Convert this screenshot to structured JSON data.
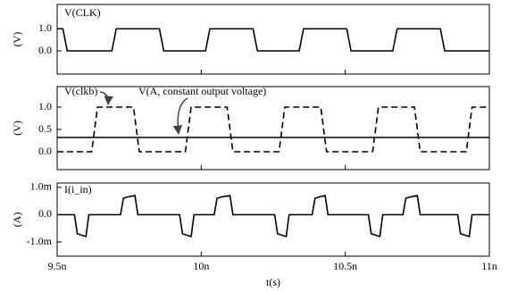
{
  "chart_data": [
    {
      "type": "line",
      "y_label": "(V)",
      "x": [
        9.5e-09,
        9.52e-09,
        9.535e-09,
        9.69e-09,
        9.705e-09,
        9.855e-09,
        9.87e-09,
        1.0015e-08,
        1.003e-08,
        1.018e-08,
        1.0195e-08,
        1.034e-08,
        1.0355e-08,
        1.0505e-08,
        1.052e-08,
        1.0665e-08,
        1.068e-08,
        1.083e-08,
        1.0845e-08,
        1.1e-08
      ],
      "series": [
        {
          "name": "V(CLK)",
          "color": "#000000",
          "line_style": "solid",
          "values": [
            1.0,
            1.0,
            0.0,
            0.0,
            1.0,
            1.0,
            0.0,
            0.0,
            1.0,
            1.0,
            0.0,
            0.0,
            1.0,
            1.0,
            0.0,
            0.0,
            1.0,
            1.0,
            0.0,
            0.0
          ]
        }
      ],
      "xlim": [
        9.5e-09,
        1.1e-08
      ],
      "ylim": [
        -1.05,
        2.1
      ],
      "yticks": [
        {
          "value": 0,
          "label": "0.0"
        },
        {
          "value": 1,
          "label": "1.0"
        }
      ]
    },
    {
      "type": "line",
      "y_label": "(V)",
      "x": [
        9.5e-09,
        9.62e-09,
        9.64e-09,
        9.765e-09,
        9.785e-09,
        9.945e-09,
        9.965e-09,
        1.009e-08,
        1.011e-08,
        1.027e-08,
        1.029e-08,
        1.0415e-08,
        1.0435e-08,
        1.0595e-08,
        1.0615e-08,
        1.074e-08,
        1.076e-08,
        1.092e-08,
        1.094e-08,
        1.1e-08
      ],
      "series": [
        {
          "name": "V(clkb)",
          "color": "#000000",
          "line_style": "dashed",
          "values": [
            0.0,
            0.0,
            1.0,
            1.0,
            0.0,
            0.0,
            1.0,
            1.0,
            0.0,
            0.0,
            1.0,
            1.0,
            0.0,
            0.0,
            1.0,
            1.0,
            0.0,
            0.0,
            1.0,
            1.0
          ]
        },
        {
          "name": "V(A, constant output voltage)",
          "color": "#000000",
          "line_style": "solid",
          "values": [
            0.32,
            0.32,
            0.32,
            0.32,
            0.32,
            0.32,
            0.32,
            0.32,
            0.32,
            0.32,
            0.32,
            0.32,
            0.32,
            0.32,
            0.32,
            0.32,
            0.32,
            0.32,
            0.32,
            0.32
          ]
        }
      ],
      "xlim": [
        9.5e-09,
        1.1e-08
      ],
      "ylim": [
        -0.4,
        1.46
      ],
      "yticks": [
        {
          "value": 0,
          "label": "0.0"
        },
        0.5,
        {
          "value": 1,
          "label": "1.0"
        }
      ]
    },
    {
      "type": "line",
      "y_label": "(A)",
      "x_label": "t(s)",
      "x": [
        9.5e-09,
        9.56e-09,
        9.57e-09,
        9.6e-09,
        9.61e-09,
        9.72e-09,
        9.73e-09,
        9.745e-09,
        9.77e-09,
        9.78e-09,
        9.925e-09,
        9.935e-09,
        9.965e-09,
        9.975e-09,
        1.0045e-08,
        1.0055e-08,
        1.007e-08,
        1.01e-08,
        1.011e-08,
        1.0255e-08,
        1.0265e-08,
        1.0295e-08,
        1.0305e-08,
        1.0385e-08,
        1.0395e-08,
        1.041e-08,
        1.043e-08,
        1.044e-08,
        1.058e-08,
        1.059e-08,
        1.062e-08,
        1.063e-08,
        1.07e-08,
        1.071e-08,
        1.0725e-08,
        1.075e-08,
        1.076e-08,
        1.089e-08,
        1.09e-08,
        1.093e-08,
        1.094e-08,
        1.1e-08
      ],
      "series": [
        {
          "name": "I(i_in)",
          "color": "#000000",
          "line_style": "solid",
          "values": [
            0,
            0,
            -0.0007,
            -0.0008,
            0,
            0,
            0.0006,
            0.00065,
            0.0007,
            0,
            0,
            -0.0007,
            -0.0008,
            0,
            0,
            0.0006,
            0.00065,
            0.0007,
            0,
            0,
            -0.0007,
            -0.0008,
            0,
            0,
            0.0006,
            0.00065,
            0.0007,
            0,
            0,
            -0.0007,
            -0.0008,
            0,
            0,
            0.0006,
            0.00065,
            0.0007,
            0,
            0,
            -0.0007,
            -0.0008,
            0,
            0
          ]
        }
      ],
      "xlim": [
        9.5e-09,
        1.1e-08
      ],
      "ylim": [
        -0.00152,
        0.00116
      ],
      "xticks": [
        {
          "value": 9.5e-09,
          "label": "9.5n"
        },
        {
          "value": 1e-08,
          "label": "10n"
        },
        {
          "value": 1.05e-08,
          "label": "10.5n"
        },
        {
          "value": 1.1e-08,
          "label": "11n"
        }
      ],
      "yticks": [
        {
          "value": -0.001,
          "label": "-1.0m"
        },
        {
          "value": 0,
          "label": "0.0"
        },
        {
          "value": 0.001,
          "label": "1.0m"
        }
      ]
    }
  ]
}
